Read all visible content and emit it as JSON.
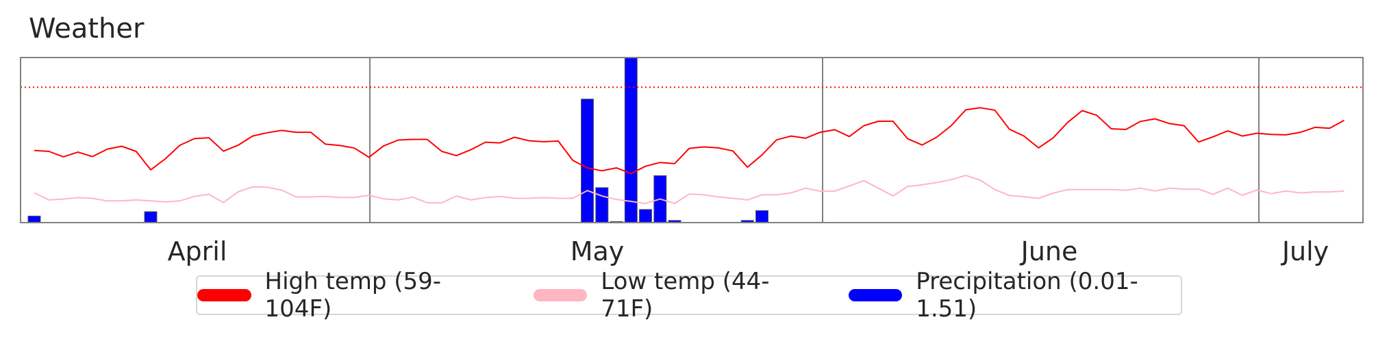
{
  "title": "Weather",
  "colors": {
    "high": "#ff0000",
    "low": "#ffb6c1",
    "precip": "#0000ff",
    "reference_line": "#ff0000"
  },
  "legend": [
    {
      "label": "High temp (59-104F)",
      "color": "#ff0000"
    },
    {
      "label": "Low temp (44-71F)",
      "color": "#ffb6c1"
    },
    {
      "label": "Precipitation (0.01-1.51)",
      "color": "#0000ff"
    }
  ],
  "chart_data": {
    "type": "line",
    "title": "Weather",
    "x_labels": [
      "April",
      "May",
      "June",
      "July"
    ],
    "month_start_days": [
      0,
      31,
      71,
      110,
      120
    ],
    "month_label_days": [
      15,
      51,
      91,
      115
    ],
    "reference_line": {
      "type": "dotted",
      "value_fraction": 0.82
    },
    "series": [
      {
        "name": "High temp (59-104F)",
        "kind": "line",
        "range": [
          59,
          104
        ],
        "values": [
          75.6,
          75.2,
          72.9,
          74.9,
          73.0,
          76.1,
          77.4,
          75.2,
          67.4,
          72.0,
          77.8,
          80.6,
          81.0,
          75.3,
          77.8,
          81.7,
          83.1,
          84.1,
          83.3,
          83.3,
          78.3,
          77.7,
          76.6,
          72.7,
          77.5,
          80.0,
          80.3,
          80.3,
          75.2,
          73.4,
          75.9,
          79.1,
          78.8,
          81.2,
          79.7,
          79.3,
          79.6,
          71.4,
          68.2,
          67.0,
          68.2,
          65.8,
          68.9,
          70.5,
          70.0,
          76.5,
          77.1,
          76.7,
          75.4,
          68.5,
          73.7,
          80.1,
          81.7,
          80.8,
          83.3,
          84.4,
          81.5,
          86.1,
          88.0,
          88.0,
          80.6,
          77.9,
          81.2,
          86.1,
          92.8,
          93.7,
          92.7,
          84.6,
          81.7,
          76.7,
          80.9,
          87.5,
          92.5,
          90.5,
          84.8,
          84.5,
          87.9,
          89.0,
          87.0,
          86.1,
          79.2,
          81.4,
          83.9,
          81.7,
          82.9,
          82.4,
          82.2,
          83.3,
          85.4,
          85.0,
          88.4
        ]
      },
      {
        "name": "Low temp (44-71F)",
        "kind": "line",
        "range": [
          44,
          71
        ],
        "values": [
          52.6,
          49.6,
          50.0,
          50.6,
          50.3,
          49.2,
          49.2,
          49.6,
          49.2,
          48.8,
          49.2,
          51.1,
          52.0,
          48.5,
          53.0,
          55.2,
          55.0,
          53.8,
          50.9,
          50.9,
          51.1,
          50.7,
          50.7,
          51.6,
          50.1,
          49.6,
          50.8,
          48.4,
          48.4,
          51.3,
          49.6,
          50.6,
          51.1,
          50.3,
          50.3,
          50.6,
          50.3,
          50.3,
          53.6,
          51.3,
          49.8,
          49.0,
          48.1,
          50.0,
          48.1,
          52.1,
          51.8,
          50.9,
          50.3,
          49.6,
          51.8,
          51.8,
          52.6,
          54.6,
          53.3,
          53.4,
          55.5,
          57.8,
          54.6,
          51.3,
          55.3,
          56.0,
          57.0,
          58.2,
          60.0,
          58.0,
          54.0,
          51.5,
          51.0,
          50.3,
          52.5,
          54.0,
          54.0,
          54.0,
          54.0,
          53.7,
          54.6,
          53.4,
          54.6,
          54.2,
          54.2,
          52.0,
          54.6,
          51.6,
          53.8,
          52.3,
          53.4,
          52.6,
          53.0,
          53.0,
          53.4
        ]
      },
      {
        "name": "Precipitation (0.01-1.51)",
        "kind": "bar",
        "range": [
          0.01,
          1.51
        ],
        "values": [
          0.06,
          0,
          0,
          0,
          0,
          0,
          0,
          0,
          0.1,
          0,
          0,
          0,
          0,
          0,
          0,
          0,
          0,
          0,
          0,
          0,
          0,
          0,
          0,
          0,
          0,
          0,
          0,
          0,
          0,
          0,
          0,
          0,
          0,
          0,
          0,
          0,
          0,
          0,
          1.13,
          0.32,
          0.01,
          1.51,
          0.12,
          0.43,
          0.02,
          0,
          0,
          0,
          0,
          0.02,
          0.11,
          0,
          0,
          0,
          0,
          0,
          0,
          0,
          0,
          0,
          0,
          0,
          0,
          0,
          0,
          0,
          0,
          0,
          0,
          0,
          0,
          0,
          0,
          0,
          0,
          0,
          0,
          0,
          0,
          0,
          0,
          0,
          0,
          0,
          0,
          0,
          0,
          0,
          0,
          0,
          0
        ]
      }
    ]
  }
}
